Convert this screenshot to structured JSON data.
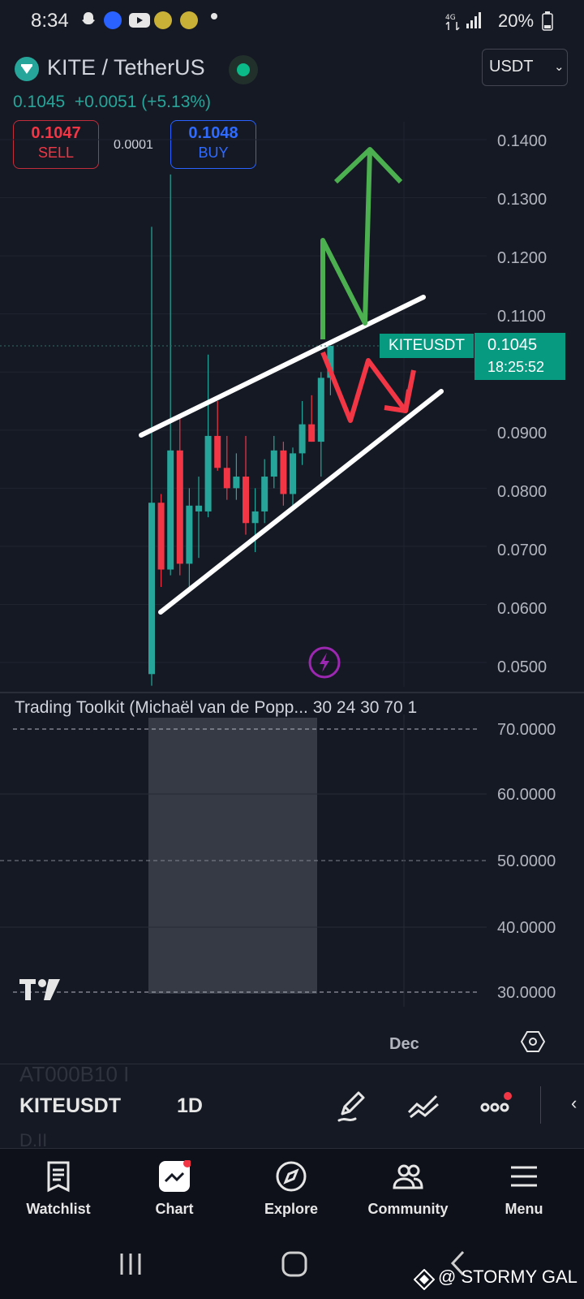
{
  "status_bar": {
    "time": "8:34",
    "battery": "20%"
  },
  "header": {
    "symbol": "KITE / TetherUS",
    "last_price": "0.1045",
    "change": "+0.0051",
    "change_pct": "(+5.13%)",
    "sell_price": "0.1047",
    "sell_label": "SELL",
    "spread": "0.0001",
    "buy_price": "0.1048",
    "buy_label": "BUY",
    "currency": "USDT"
  },
  "price_axis": [
    "0.1400",
    "0.1300",
    "0.1200",
    "0.1100",
    "0.0900",
    "0.0800",
    "0.0700",
    "0.0600",
    "0.0500"
  ],
  "price_tag": {
    "symbol": "KITEUSDT",
    "price": "0.1045",
    "countdown": "18:25:52"
  },
  "indicator": {
    "title": "Trading Toolkit (Michaël van de Popp... 30 24 30 70 1",
    "axis": [
      "70.0000",
      "60.0000",
      "50.0000",
      "40.0000",
      "30.0000"
    ]
  },
  "time_axis": {
    "label": "Dec"
  },
  "toolbar": {
    "symbol": "KITEUSDT",
    "interval": "1D",
    "ghost_top": "AT000B10 I",
    "ghost_bottom": "D.II"
  },
  "nav": {
    "watchlist": "Watchlist",
    "chart": "Chart",
    "explore": "Explore",
    "community": "Community",
    "menu": "Menu"
  },
  "watermark": "@ STORMY GAL",
  "colors": {
    "up": "#26a69a",
    "down": "#f23645",
    "background": "#151924",
    "accent": "#089981"
  },
  "chart_data": {
    "type": "candlestick",
    "symbol": "KITEUSDT",
    "interval": "1D",
    "ylim": [
      0.045,
      0.145
    ],
    "candles": [
      {
        "o": 0.048,
        "h": 0.125,
        "l": 0.046,
        "c": 0.0775
      },
      {
        "o": 0.0775,
        "h": 0.079,
        "l": 0.063,
        "c": 0.066
      },
      {
        "o": 0.066,
        "h": 0.134,
        "l": 0.065,
        "c": 0.0865
      },
      {
        "o": 0.0865,
        "h": 0.092,
        "l": 0.065,
        "c": 0.067
      },
      {
        "o": 0.067,
        "h": 0.08,
        "l": 0.063,
        "c": 0.077
      },
      {
        "o": 0.076,
        "h": 0.082,
        "l": 0.068,
        "c": 0.077
      },
      {
        "o": 0.076,
        "h": 0.103,
        "l": 0.075,
        "c": 0.089
      },
      {
        "o": 0.089,
        "h": 0.095,
        "l": 0.083,
        "c": 0.0835
      },
      {
        "o": 0.0835,
        "h": 0.089,
        "l": 0.078,
        "c": 0.08
      },
      {
        "o": 0.08,
        "h": 0.086,
        "l": 0.078,
        "c": 0.082
      },
      {
        "o": 0.082,
        "h": 0.089,
        "l": 0.072,
        "c": 0.074
      },
      {
        "o": 0.074,
        "h": 0.08,
        "l": 0.069,
        "c": 0.076
      },
      {
        "o": 0.076,
        "h": 0.085,
        "l": 0.074,
        "c": 0.082
      },
      {
        "o": 0.082,
        "h": 0.089,
        "l": 0.08,
        "c": 0.0865
      },
      {
        "o": 0.0865,
        "h": 0.088,
        "l": 0.077,
        "c": 0.079
      },
      {
        "o": 0.079,
        "h": 0.087,
        "l": 0.077,
        "c": 0.086
      },
      {
        "o": 0.086,
        "h": 0.095,
        "l": 0.084,
        "c": 0.091
      },
      {
        "o": 0.091,
        "h": 0.096,
        "l": 0.088,
        "c": 0.088
      },
      {
        "o": 0.088,
        "h": 0.1,
        "l": 0.082,
        "c": 0.099
      },
      {
        "o": 0.099,
        "h": 0.1045,
        "l": 0.096,
        "c": 0.1045
      }
    ],
    "annotations": {
      "channel_upper": [
        [
          0.09
        ],
        [
          0.11
        ]
      ],
      "channel_lower": [
        [
          0.061
        ],
        [
          0.095
        ]
      ],
      "green_arrow_top": 0.139,
      "red_zigzag_target": 0.093
    }
  }
}
